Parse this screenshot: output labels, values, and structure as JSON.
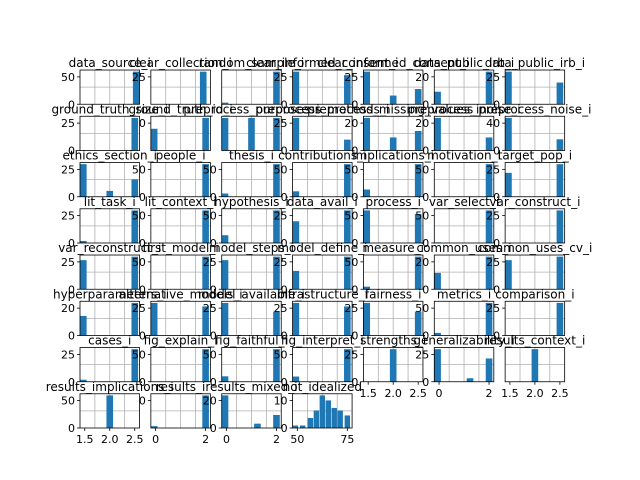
{
  "figure": {
    "type": "histogram-grid",
    "bar_color": "#1f77b4",
    "grid": true,
    "grid_color": "#b0b0b0"
  },
  "chart_data": [
    {
      "type": "bar",
      "title": "data_source_i",
      "yticks": [
        "0",
        "50"
      ],
      "xticks": [],
      "bins": [
        {
          "x": 1.96,
          "h": 2
        },
        {
          "x": 1.88,
          "h": 52
        }
      ]
    },
    {
      "type": "bar",
      "title": "clear_collection_i",
      "yticks": [
        "25"
      ],
      "xticks": [],
      "bins": [
        {
          "x": 0.88,
          "h": 40
        }
      ]
    },
    {
      "type": "bar",
      "title": "random_sample_i",
      "yticks": [],
      "xticks": [],
      "bins": [
        {
          "x": 0.05,
          "h": 1
        },
        {
          "x": 0.92,
          "h": 20
        }
      ]
    },
    {
      "type": "bar",
      "title": "clear_informed_consent_i",
      "yticks": [
        "0",
        "25"
      ],
      "xticks": [],
      "bins": [
        {
          "x": 0.05,
          "h": 28
        },
        {
          "x": 0.92,
          "h": 25
        }
      ]
    },
    {
      "type": "bar",
      "title": "clear_informed_consent_i",
      "yticks": [
        "0",
        "25"
      ],
      "xticks": [],
      "bins": [
        {
          "x": 0.05,
          "h": 30
        },
        {
          "x": 0.5,
          "h": 8
        },
        {
          "x": 0.92,
          "h": 14
        }
      ]
    },
    {
      "type": "bar",
      "title": "data_public_irb_i",
      "yticks": [
        "0",
        "20"
      ],
      "xticks": [],
      "bins": [
        {
          "x": 0.05,
          "h": 10
        },
        {
          "x": 0.92,
          "h": 26
        }
      ]
    },
    {
      "type": "bar",
      "title": "data_public_irb_i",
      "yticks": [
        "0",
        "25"
      ],
      "xticks": [],
      "bins": [
        {
          "x": 0.05,
          "h": 27
        },
        {
          "x": 0.92,
          "h": 18
        }
      ]
    },
    {
      "type": "bar",
      "title": "ground_truth_size_i",
      "yticks": [
        "0",
        "25"
      ],
      "xticks": [],
      "bins": [
        {
          "x": 0.92,
          "h": 30
        }
      ]
    },
    {
      "type": "bar",
      "title": "ground_truth_id_i",
      "yticks": [
        "0"
      ],
      "xticks": [],
      "bins": [
        {
          "x": 0.05,
          "h": 20
        },
        {
          "x": 0.92,
          "h": 30
        }
      ]
    },
    {
      "type": "bar",
      "title": "preprocess_purposes_i",
      "yticks": [],
      "xticks": [],
      "bins": [
        {
          "x": 0.05,
          "h": 10
        },
        {
          "x": 0.5,
          "h": 10
        },
        {
          "x": 0.92,
          "h": 10
        }
      ]
    },
    {
      "type": "bar",
      "title": "preprocess_methods_i",
      "yticks": [
        "0",
        "25"
      ],
      "xticks": [],
      "bins": [
        {
          "x": 0.05,
          "h": 30
        },
        {
          "x": 0.92,
          "h": 10
        }
      ]
    },
    {
      "type": "bar",
      "title": "preprocess_missing_values_i",
      "yticks": [
        "0",
        "20"
      ],
      "xticks": [],
      "bins": [
        {
          "x": 0.05,
          "h": 20
        },
        {
          "x": 0.5,
          "h": 8
        },
        {
          "x": 0.92,
          "h": 12
        }
      ]
    },
    {
      "type": "bar",
      "title": "preprocess_noise_i",
      "yticks": [
        "0",
        "20"
      ],
      "xticks": [],
      "bins": [
        {
          "x": 0.05,
          "h": 25
        },
        {
          "x": 0.92,
          "h": 10
        }
      ]
    },
    {
      "type": "bar",
      "title": "preprocess_noise_i",
      "yticks": [
        "0",
        "40"
      ],
      "xticks": [],
      "bins": [
        {
          "x": 0.05,
          "h": 35
        },
        {
          "x": 0.92,
          "h": 12
        }
      ]
    },
    {
      "type": "bar",
      "title": "ethics_section_i",
      "yticks": [
        "0",
        "25"
      ],
      "xticks": [],
      "bins": [
        {
          "x": 0.05,
          "h": 28
        },
        {
          "x": 0.5,
          "h": 5
        },
        {
          "x": 0.92,
          "h": 15
        }
      ]
    },
    {
      "type": "bar",
      "title": "people_i",
      "yticks": [
        "0",
        "50"
      ],
      "xticks": [],
      "bins": [
        {
          "x": 0.92,
          "h": 52
        }
      ]
    },
    {
      "type": "bar",
      "title": "thesis_i",
      "yticks": [
        "0",
        "50"
      ],
      "xticks": [],
      "bins": [
        {
          "x": 0.05,
          "h": 5
        },
        {
          "x": 0.92,
          "h": 50
        }
      ]
    },
    {
      "type": "bar",
      "title": "contributions_i",
      "yticks": [
        "0",
        "50"
      ],
      "xticks": [],
      "bins": [
        {
          "x": 0.05,
          "h": 8
        },
        {
          "x": 0.92,
          "h": 48
        }
      ]
    },
    {
      "type": "bar",
      "title": "implications_i",
      "yticks": [
        "0",
        "50"
      ],
      "xticks": [],
      "bins": [
        {
          "x": 0.05,
          "h": 10
        },
        {
          "x": 0.92,
          "h": 45
        }
      ]
    },
    {
      "type": "bar",
      "title": "motivation_i",
      "yticks": [
        "0",
        "50"
      ],
      "xticks": [],
      "bins": [
        {
          "x": 0.92,
          "h": 52
        }
      ]
    },
    {
      "type": "bar",
      "title": "target_pop_i",
      "yticks": [
        "0",
        "25"
      ],
      "xticks": [],
      "bins": [
        {
          "x": 0.05,
          "h": 22
        },
        {
          "x": 0.92,
          "h": 30
        }
      ]
    },
    {
      "type": "bar",
      "title": "lit_task_i",
      "yticks": [
        "0",
        "25"
      ],
      "xticks": [],
      "bins": [
        {
          "x": 0.05,
          "h": 3
        },
        {
          "x": 0.92,
          "h": 48
        }
      ]
    },
    {
      "type": "bar",
      "title": "lit_context_i",
      "yticks": [
        "0",
        "50"
      ],
      "xticks": [],
      "bins": [
        {
          "x": 0.92,
          "h": 52
        }
      ]
    },
    {
      "type": "bar",
      "title": "hypothesis_i",
      "yticks": [
        "0",
        "50"
      ],
      "xticks": [],
      "bins": [
        {
          "x": 0.05,
          "h": 10
        },
        {
          "x": 0.92,
          "h": 42
        }
      ]
    },
    {
      "type": "bar",
      "title": "data_avail_i",
      "yticks": [
        "0",
        "25"
      ],
      "xticks": [],
      "bins": [
        {
          "x": 0.05,
          "h": 20
        },
        {
          "x": 0.92,
          "h": 30
        }
      ]
    },
    {
      "type": "bar",
      "title": "process_i",
      "yticks": [
        "0",
        "50"
      ],
      "xticks": [],
      "bins": [
        {
          "x": 0.05,
          "h": 28
        },
        {
          "x": 0.92,
          "h": 25
        }
      ]
    },
    {
      "type": "bar",
      "title": "var_select_i",
      "yticks": [
        "0",
        "50"
      ],
      "xticks": [],
      "bins": [
        {
          "x": 0.05,
          "h": 1
        },
        {
          "x": 0.92,
          "h": 52
        }
      ]
    },
    {
      "type": "bar",
      "title": "var_construct_i",
      "yticks": [
        "0",
        "25"
      ],
      "xticks": [],
      "bins": [
        {
          "x": 0.92,
          "h": 30
        }
      ]
    },
    {
      "type": "bar",
      "title": "var_reconstruct_i",
      "yticks": [
        "0",
        "25"
      ],
      "xticks": [],
      "bins": [
        {
          "x": 0.05,
          "h": 25
        },
        {
          "x": 0.92,
          "h": 28
        }
      ]
    },
    {
      "type": "bar",
      "title": "first_model_i",
      "yticks": [
        "0",
        "50"
      ],
      "xticks": [],
      "bins": [
        {
          "x": 0.92,
          "h": 52
        }
      ]
    },
    {
      "type": "bar",
      "title": "model_steps_i",
      "yticks": [
        "0",
        "25"
      ],
      "xticks": [],
      "bins": [
        {
          "x": 0.05,
          "h": 25
        },
        {
          "x": 0.92,
          "h": 28
        }
      ]
    },
    {
      "type": "bar",
      "title": "model_define_i",
      "yticks": [
        "0",
        "25"
      ],
      "xticks": [],
      "bins": [
        {
          "x": 0.05,
          "h": 18
        },
        {
          "x": 0.92,
          "h": 32
        }
      ]
    },
    {
      "type": "bar",
      "title": "measure_i",
      "yticks": [
        "0",
        "50"
      ],
      "xticks": [],
      "bins": [
        {
          "x": 0.05,
          "h": 4
        },
        {
          "x": 0.92,
          "h": 50
        }
      ]
    },
    {
      "type": "bar",
      "title": "common_uses_i",
      "yticks": [
        "0",
        "20"
      ],
      "xticks": [],
      "bins": [
        {
          "x": 0.05,
          "h": 10
        },
        {
          "x": 0.92,
          "h": 20
        }
      ]
    },
    {
      "type": "bar",
      "title": "common_uses_cv_i",
      "yticks": [
        "0",
        "25"
      ],
      "xticks": [],
      "bins": [
        {
          "x": 0.05,
          "h": 25
        },
        {
          "x": 0.92,
          "h": 28
        }
      ]
    },
    {
      "type": "bar",
      "title": "hyperparameters_i",
      "yticks": [
        "0",
        "20"
      ],
      "xticks": [],
      "bins": [
        {
          "x": 0.05,
          "h": 18
        },
        {
          "x": 0.92,
          "h": 30
        }
      ]
    },
    {
      "type": "bar",
      "title": "alternative_models_i",
      "yticks": [
        "0",
        "25"
      ],
      "xticks": [],
      "bins": [
        {
          "x": 0.05,
          "h": 28
        },
        {
          "x": 0.92,
          "h": 25
        }
      ]
    },
    {
      "type": "bar",
      "title": "model_available_i",
      "yticks": [
        "0",
        "25"
      ],
      "xticks": [],
      "bins": [
        {
          "x": 0.05,
          "h": 30
        },
        {
          "x": 0.92,
          "h": 22
        }
      ]
    },
    {
      "type": "bar",
      "title": "infrastructure_i",
      "yticks": [
        "0",
        "25"
      ],
      "xticks": [],
      "bins": [
        {
          "x": 0.05,
          "h": 28
        },
        {
          "x": 0.92,
          "h": 25
        }
      ]
    },
    {
      "type": "bar",
      "title": "fairness_i",
      "yticks": [
        "0",
        "25"
      ],
      "xticks": [],
      "bins": [
        {
          "x": 0.05,
          "h": 30
        },
        {
          "x": 0.92,
          "h": 22
        }
      ]
    },
    {
      "type": "bar",
      "title": "metrics_i",
      "yticks": [
        "0",
        "50"
      ],
      "xticks": [],
      "bins": [
        {
          "x": 0.05,
          "h": 4
        },
        {
          "x": 0.92,
          "h": 50
        }
      ]
    },
    {
      "type": "bar",
      "title": "comparison_i",
      "yticks": [
        "0",
        "25"
      ],
      "xticks": [],
      "bins": [
        {
          "x": 0.92,
          "h": 30
        }
      ]
    },
    {
      "type": "bar",
      "title": "cases_i",
      "yticks": [
        "0",
        "25"
      ],
      "xticks": [],
      "bins": [
        {
          "x": 0.05,
          "h": 3
        },
        {
          "x": 0.92,
          "h": 48
        }
      ]
    },
    {
      "type": "bar",
      "title": "fig_explain_i",
      "yticks": [
        "0",
        "50"
      ],
      "xticks": [],
      "bins": [
        {
          "x": 0.92,
          "h": 52
        }
      ]
    },
    {
      "type": "bar",
      "title": "fig_faithful_i",
      "yticks": [
        "0",
        "50"
      ],
      "xticks": [],
      "bins": [
        {
          "x": 0.05,
          "h": 8
        },
        {
          "x": 0.92,
          "h": 48
        }
      ]
    },
    {
      "type": "bar",
      "title": "fig_interpret_i",
      "yticks": [
        "0",
        "50"
      ],
      "xticks": [],
      "bins": [
        {
          "x": 0.05,
          "h": 8
        },
        {
          "x": 0.92,
          "h": 50
        }
      ]
    },
    {
      "type": "bar",
      "title": "strengths_i",
      "yticks": [
        "0",
        "25"
      ],
      "xticks": [
        "1.5",
        "2.0",
        "2.5"
      ],
      "bins": [
        {
          "x": 0.5,
          "h": 28
        }
      ]
    },
    {
      "type": "bar",
      "title": "generalizability_i",
      "yticks": [
        "0",
        "25"
      ],
      "xticks": [
        "0",
        "2"
      ],
      "bins": [
        {
          "x": 0.05,
          "h": 28
        },
        {
          "x": 0.6,
          "h": 3
        },
        {
          "x": 0.92,
          "h": 20
        }
      ]
    },
    {
      "type": "bar",
      "title": "results_context_i",
      "yticks": [],
      "xticks": [
        "1.5",
        "2.0",
        "2.5"
      ],
      "bins": [
        {
          "x": 0.5,
          "h": 30
        }
      ]
    },
    {
      "type": "bar",
      "title": "results_implications_i",
      "yticks": [
        "0",
        "50"
      ],
      "xticks": [
        "1.5",
        "2.0",
        "2.5"
      ],
      "bins": [
        {
          "x": 0.5,
          "h": 50
        }
      ]
    },
    {
      "type": "bar",
      "title": "results_i",
      "yticks": [
        "0"
      ],
      "xticks": [
        "0",
        "2"
      ],
      "bins": [
        {
          "x": 0.05,
          "h": 3
        },
        {
          "x": 0.92,
          "h": 52
        }
      ]
    },
    {
      "type": "bar",
      "title": "results_mixed_i",
      "yticks": [
        "0",
        "20"
      ],
      "xticks": [
        "0",
        "2"
      ],
      "bins": [
        {
          "x": 0.05,
          "h": 30
        },
        {
          "x": 0.6,
          "h": 4
        },
        {
          "x": 0.92,
          "h": 12
        }
      ]
    },
    {
      "type": "bar",
      "title": "not_idealized",
      "yticks": [
        "0",
        "10"
      ],
      "xticks": [
        "50",
        "75"
      ],
      "bins": [
        {
          "x": 0.03,
          "h": 1
        },
        {
          "x": 0.17,
          "h": 1
        },
        {
          "x": 0.3,
          "h": 4
        },
        {
          "x": 0.4,
          "h": 7
        },
        {
          "x": 0.5,
          "h": 13
        },
        {
          "x": 0.6,
          "h": 11
        },
        {
          "x": 0.7,
          "h": 8
        },
        {
          "x": 0.8,
          "h": 7
        },
        {
          "x": 0.92,
          "h": 5
        }
      ]
    }
  ]
}
